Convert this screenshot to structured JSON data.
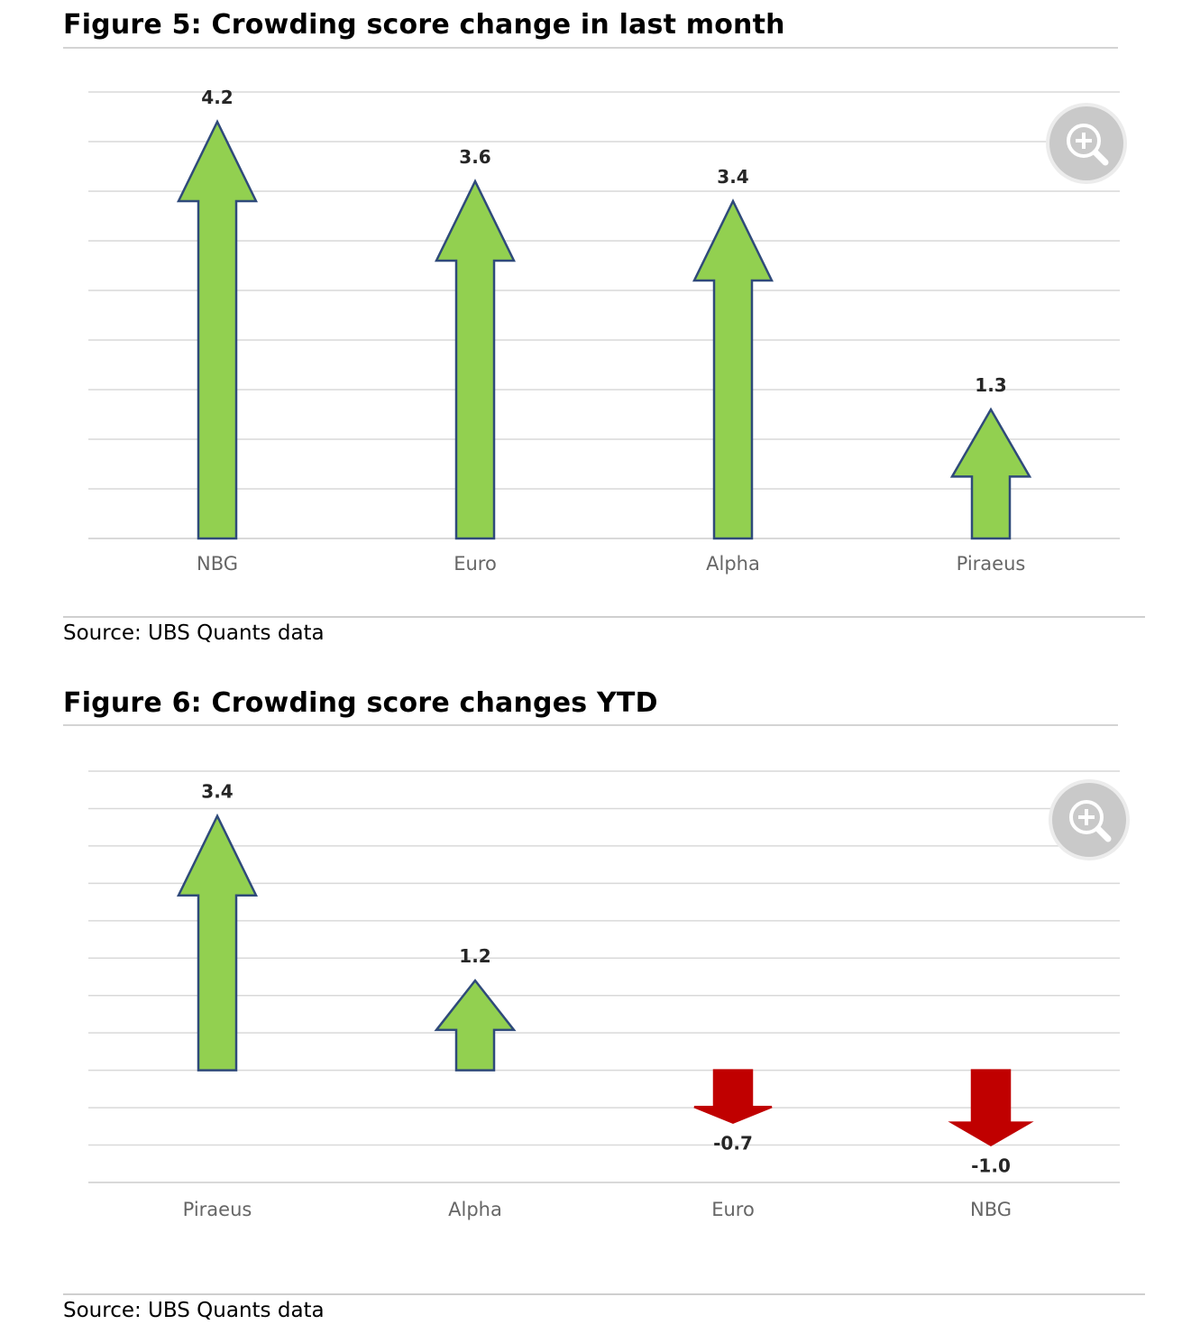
{
  "figures": [
    {
      "title": "Figure 5: Crowding score change in last month",
      "source": "Source: UBS Quants data",
      "zoom_icon": "zoom-in-icon"
    },
    {
      "title": "Figure 6: Crowding score changes YTD",
      "source": "Source: UBS Quants data",
      "zoom_icon": "zoom-in-icon"
    }
  ],
  "colors": {
    "up": "#92d050",
    "down": "#c00000",
    "outline_up": "#2f4a7a",
    "outline_down": "#c00000",
    "grid": "#d9d9d9"
  },
  "chart_data": [
    {
      "type": "bar",
      "marker": "arrow",
      "title": "Figure 5: Crowding score change in last month",
      "categories": [
        "NBG",
        "Euro",
        "Alpha",
        "Piraeus"
      ],
      "values": [
        4.2,
        3.6,
        3.4,
        1.3
      ],
      "labels": [
        "4.2",
        "3.6",
        "3.4",
        "1.3"
      ],
      "ylim": [
        0,
        4.5
      ],
      "grid": true,
      "legend": "none"
    },
    {
      "type": "bar",
      "marker": "arrow",
      "title": "Figure 6: Crowding score changes YTD",
      "categories": [
        "Piraeus",
        "Alpha",
        "Euro",
        "NBG"
      ],
      "values": [
        3.4,
        1.2,
        -0.7,
        -1.0
      ],
      "labels": [
        "3.4",
        "1.2",
        "-0.7",
        "-1.0"
      ],
      "ylim": [
        -1.5,
        4.0
      ],
      "grid": true,
      "legend": "none"
    }
  ]
}
